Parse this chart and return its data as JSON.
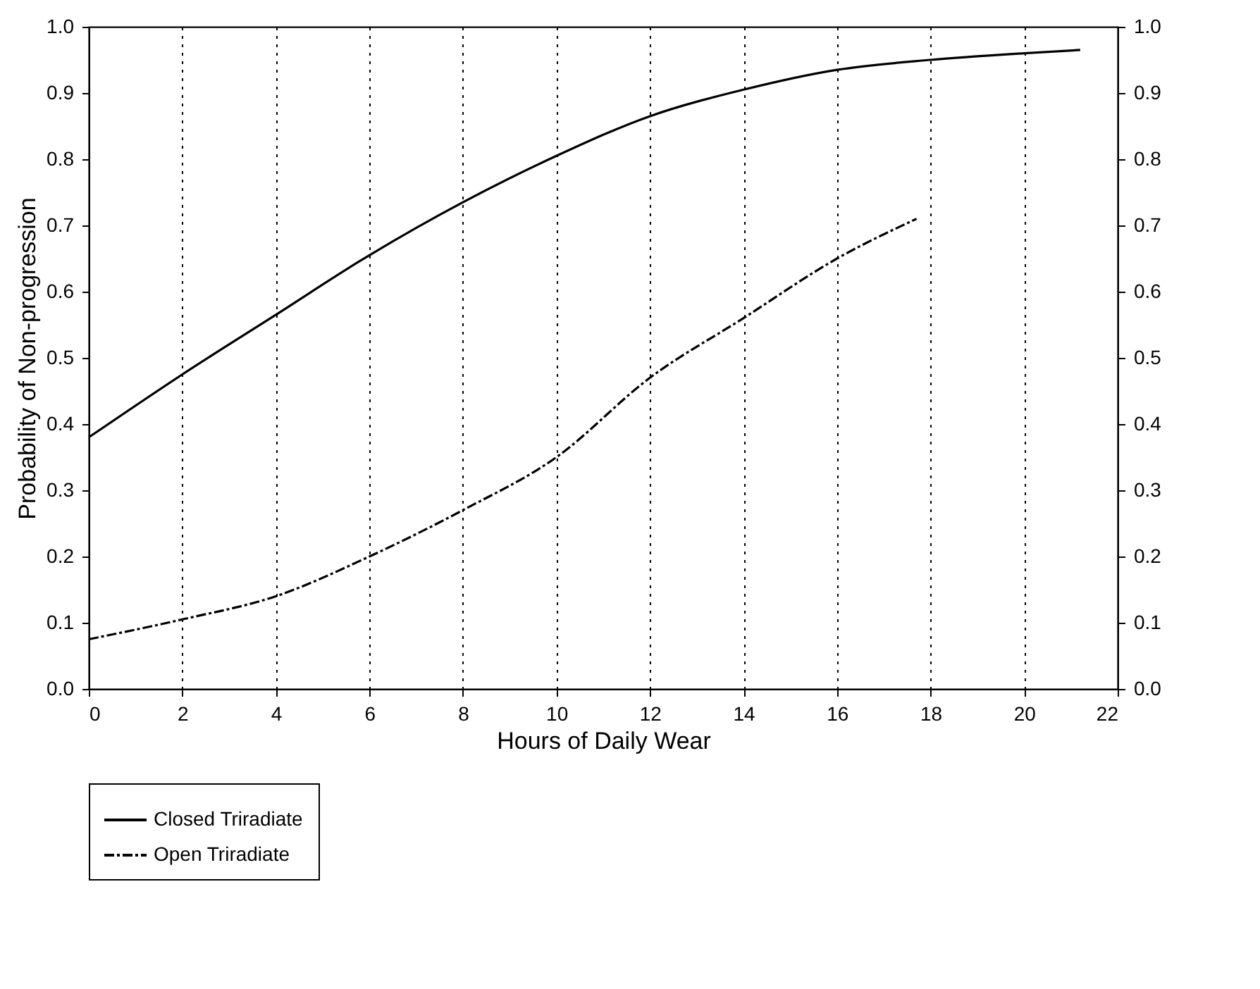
{
  "chart_data": {
    "type": "line",
    "xlabel": "Hours of Daily Wear",
    "ylabel": "Probability of Non-progression",
    "xlim": [
      0,
      22
    ],
    "xticks": [
      0,
      2,
      4,
      6,
      8,
      10,
      12,
      14,
      16,
      18,
      20,
      22
    ],
    "ylim": [
      0,
      1
    ],
    "yticks": [
      {
        "value": 0,
        "label": "0.0"
      },
      0.1,
      0.2,
      0.3,
      0.4,
      0.5,
      0.6,
      0.7,
      0.8,
      0.9,
      {
        "value": 1,
        "label": "1.0"
      }
    ],
    "y2lim": [
      0,
      1
    ],
    "y2ticks": [
      {
        "value": 0,
        "label": "0.0"
      },
      0.1,
      0.2,
      0.3,
      0.4,
      0.5,
      0.6,
      0.7,
      0.8,
      0.9,
      {
        "value": 1,
        "label": "1.0"
      }
    ],
    "grid": "x",
    "legend": "bottom",
    "series": [
      {
        "name": "Closed Triradiate",
        "color": "#000000",
        "line_style": "solid",
        "x": [
          0,
          2,
          4,
          6,
          8,
          10,
          12,
          14,
          16,
          18,
          20,
          21.2
        ],
        "values": [
          0.38,
          0.475,
          0.565,
          0.655,
          0.735,
          0.805,
          0.865,
          0.905,
          0.935,
          0.95,
          0.96,
          0.965
        ]
      },
      {
        "name": "Open Triradiate",
        "color": "#000000",
        "line_style": "dashed",
        "x": [
          0,
          2,
          4,
          6,
          8,
          10,
          12,
          14,
          16,
          17.7
        ],
        "values": [
          0.075,
          0.105,
          0.14,
          0.2,
          0.27,
          0.35,
          0.47,
          0.56,
          0.65,
          0.71
        ]
      }
    ]
  }
}
